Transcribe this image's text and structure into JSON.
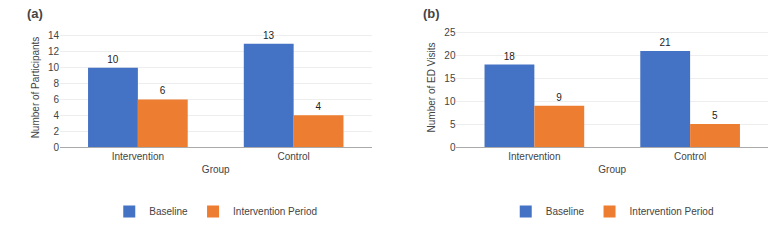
{
  "chart_data": [
    {
      "type": "bar",
      "title": "(a)",
      "xlabel": "Group",
      "ylabel": "Number of Participants",
      "categories": [
        "Intervention",
        "Control"
      ],
      "series": [
        {
          "name": "Baseline",
          "color": "#4472C4",
          "values": [
            10,
            13
          ]
        },
        {
          "name": "Intervention Period",
          "color": "#ED7D31",
          "values": [
            6,
            4
          ]
        }
      ],
      "ylim": [
        0,
        15
      ],
      "yticks": [
        0,
        2,
        4,
        6,
        8,
        10,
        12,
        14
      ],
      "grid": true,
      "data_labels": true,
      "legend": "bottom"
    },
    {
      "type": "bar",
      "title": "(b)",
      "xlabel": "Group",
      "ylabel": "Number of ED Visits",
      "categories": [
        "Intervention",
        "Control"
      ],
      "series": [
        {
          "name": "Baseline",
          "color": "#4472C4",
          "values": [
            18,
            21
          ]
        },
        {
          "name": "Intervention Period",
          "color": "#ED7D31",
          "values": [
            9,
            5
          ]
        }
      ],
      "ylim": [
        0,
        26
      ],
      "yticks": [
        0,
        5,
        10,
        15,
        20,
        25
      ],
      "grid": true,
      "data_labels": true,
      "legend": "bottom"
    }
  ]
}
